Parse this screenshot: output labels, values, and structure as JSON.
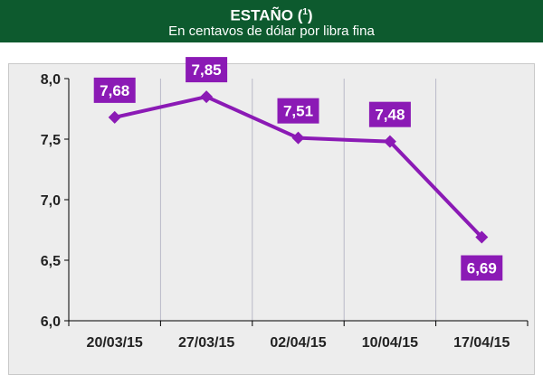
{
  "header": {
    "title": "ESTAÑO (",
    "title_sup": "1",
    "title_close": ")",
    "subtitle": "En centavos de dólar por libra fina"
  },
  "colors": {
    "header_bg": "#0d5a2e",
    "series": "#8b1ab5",
    "panel_bg": "#ededed",
    "gridline": "#b9b9c8"
  },
  "chart_data": {
    "type": "line",
    "categories": [
      "20/03/15",
      "27/03/15",
      "02/04/15",
      "10/04/15",
      "17/04/15"
    ],
    "values": [
      7.68,
      7.85,
      7.51,
      7.48,
      6.69
    ],
    "value_labels": [
      "7,68",
      "7,85",
      "7,51",
      "7,48",
      "6,69"
    ],
    "ylim": [
      6.0,
      8.0
    ],
    "yticks": [
      6.0,
      6.5,
      7.0,
      7.5,
      8.0
    ],
    "ytick_labels": [
      "6,0",
      "6,5",
      "7,0",
      "7,5",
      "8,0"
    ],
    "grid": "vertical",
    "legend": "none",
    "title": "ESTAÑO (1)",
    "subtitle": "En centavos de dólar por libra fina"
  }
}
